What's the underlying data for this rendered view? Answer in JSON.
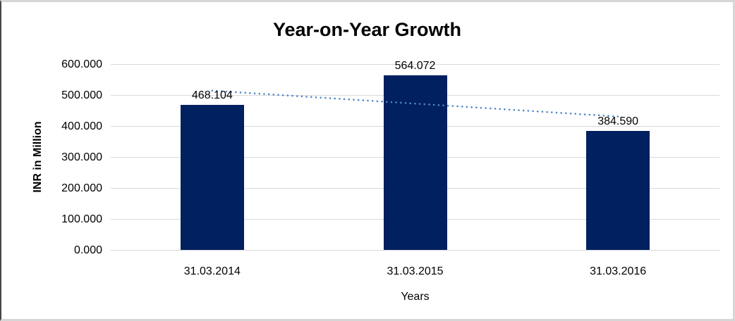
{
  "chart_data": {
    "type": "bar",
    "title": "Year-on-Year Growth",
    "xlabel": "Years",
    "ylabel": "INR in Million",
    "categories": [
      "31.03.2014",
      "31.03.2015",
      "31.03.2016"
    ],
    "values": [
      468.104,
      564.072,
      384.59
    ],
    "data_labels": [
      "468.104",
      "564.072",
      "384.590"
    ],
    "y_ticks": [
      {
        "value": 0,
        "label": "0.000"
      },
      {
        "value": 100,
        "label": "100.000"
      },
      {
        "value": 200,
        "label": "200.000"
      },
      {
        "value": 300,
        "label": "300.000"
      },
      {
        "value": 400,
        "label": "400.000"
      },
      {
        "value": 500,
        "label": "500.000"
      },
      {
        "value": 600,
        "label": "600.000"
      }
    ],
    "ylim": [
      0,
      600
    ],
    "grid": "horizontal",
    "legend": "none",
    "bar_color": "#002060",
    "gridline_color": "#d9d9d9",
    "trendline": {
      "type": "linear",
      "style": "dotted",
      "color": "#4f86c6",
      "start_value": 514.0,
      "end_value": 430.5
    }
  }
}
